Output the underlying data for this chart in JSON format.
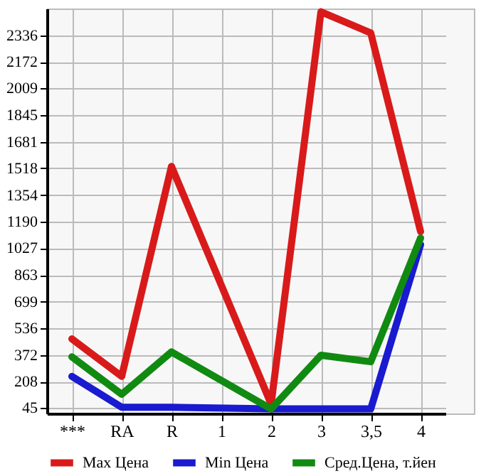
{
  "chart_data": {
    "type": "line",
    "categories": [
      "***",
      "RA",
      "R",
      "1",
      "2",
      "3",
      "3,5",
      "4"
    ],
    "series": [
      {
        "name": "Max Цена",
        "color": "#d91a1a",
        "values": [
          470,
          240,
          1530,
          null,
          70,
          2480,
          2350,
          1130
        ]
      },
      {
        "name": "Min Цена",
        "color": "#1a1ad0",
        "values": [
          240,
          50,
          50,
          null,
          40,
          40,
          40,
          1050
        ]
      },
      {
        "name": "Сред.Цена, т.йен",
        "color": "#118a11",
        "values": [
          360,
          130,
          390,
          null,
          40,
          370,
          330,
          1090
        ]
      }
    ],
    "ylim": [
      12,
      2500
    ],
    "yticks": [
      45,
      208,
      372,
      536,
      699,
      863,
      1027,
      1190,
      1354,
      1518,
      1681,
      1845,
      2009,
      2172,
      2336
    ],
    "grid": true,
    "legend": "bottom",
    "marker": "none",
    "line_style": "solid"
  }
}
